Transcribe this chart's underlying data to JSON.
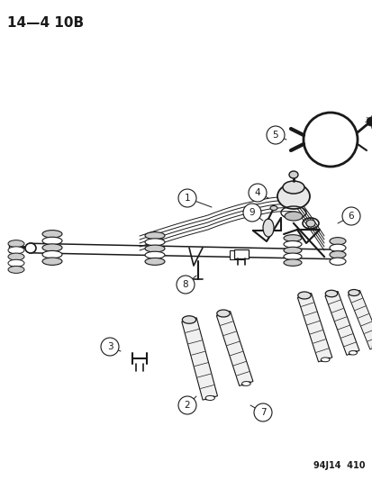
{
  "title": "14—4 10B",
  "footer": "94J14  410",
  "bg_color": "#ffffff",
  "line_color": "#1a1a1a",
  "figsize": [
    4.14,
    5.33
  ],
  "dpi": 100,
  "title_fontsize": 11,
  "footer_fontsize": 7
}
